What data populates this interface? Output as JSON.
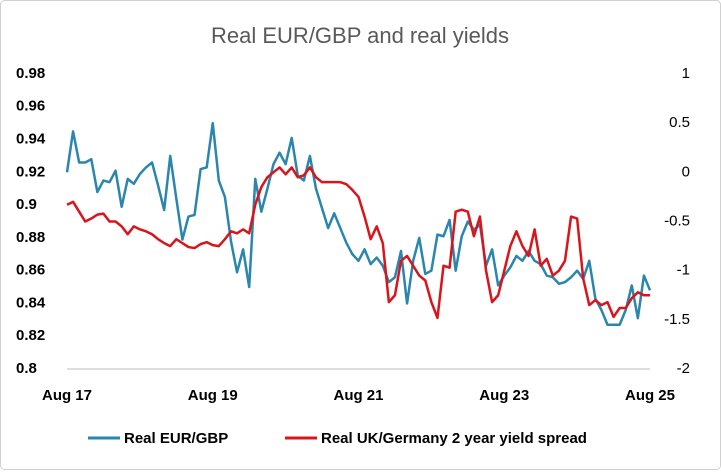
{
  "chart_data": {
    "type": "line",
    "title": "Real EUR/GBP and real yields",
    "categories": [
      "Aug 17",
      null,
      null,
      null,
      null,
      null,
      null,
      null,
      null,
      null,
      null,
      null,
      null,
      null,
      null,
      null,
      null,
      null,
      null,
      null,
      null,
      null,
      null,
      null,
      "Aug 19",
      null,
      null,
      null,
      null,
      null,
      null,
      null,
      null,
      null,
      null,
      null,
      null,
      null,
      null,
      null,
      null,
      null,
      null,
      null,
      null,
      null,
      null,
      null,
      "Aug 21",
      null,
      null,
      null,
      null,
      null,
      null,
      null,
      null,
      null,
      null,
      null,
      null,
      null,
      null,
      null,
      null,
      null,
      null,
      null,
      null,
      null,
      null,
      null,
      "Aug 23",
      null,
      null,
      null,
      null,
      null,
      null,
      null,
      null,
      null,
      null,
      null,
      null,
      null,
      null,
      null,
      null,
      null,
      null,
      null,
      null,
      null,
      null,
      null,
      "Aug 25"
    ],
    "series": [
      {
        "name": "Real EUR/GBP",
        "color": "#2b86ad",
        "axis": "y",
        "values": [
          0.92,
          0.945,
          0.926,
          0.926,
          0.928,
          0.908,
          0.915,
          0.914,
          0.921,
          0.899,
          0.916,
          0.913,
          0.919,
          0.923,
          0.926,
          0.912,
          0.897,
          0.93,
          0.904,
          0.879,
          0.893,
          0.894,
          0.922,
          0.923,
          0.95,
          0.915,
          0.905,
          0.878,
          0.859,
          0.873,
          0.85,
          0.916,
          0.896,
          0.91,
          0.925,
          0.932,
          0.925,
          0.941,
          0.918,
          0.915,
          0.93,
          0.91,
          0.898,
          0.886,
          0.895,
          0.886,
          0.877,
          0.87,
          0.866,
          0.873,
          0.864,
          0.868,
          0.863,
          0.853,
          0.856,
          0.872,
          0.84,
          0.866,
          0.88,
          0.858,
          0.86,
          0.882,
          0.881,
          0.891,
          0.86,
          0.881,
          0.89,
          0.885,
          0.888,
          0.863,
          0.873,
          0.851,
          0.857,
          0.862,
          0.869,
          0.866,
          0.872,
          0.866,
          0.864,
          0.857,
          0.856,
          0.852,
          0.853,
          0.856,
          0.86,
          0.855,
          0.866,
          0.843,
          0.836,
          0.827,
          0.827,
          0.827,
          0.836,
          0.851,
          0.831,
          0.857,
          0.848
        ]
      },
      {
        "name": "Real UK/Germany 2 year yield spread",
        "color": "#d9141b",
        "axis": "y2",
        "values": [
          -0.33,
          -0.3,
          -0.4,
          -0.5,
          -0.47,
          -0.43,
          -0.42,
          -0.5,
          -0.5,
          -0.55,
          -0.63,
          -0.55,
          -0.58,
          -0.6,
          -0.63,
          -0.68,
          -0.72,
          -0.75,
          -0.68,
          -0.72,
          -0.76,
          -0.77,
          -0.73,
          -0.71,
          -0.74,
          -0.75,
          -0.68,
          -0.6,
          -0.62,
          -0.58,
          -0.62,
          -0.33,
          -0.15,
          -0.05,
          0.0,
          0.05,
          -0.02,
          0.05,
          -0.05,
          -0.03,
          0.05,
          -0.05,
          -0.1,
          -0.1,
          -0.1,
          -0.1,
          -0.12,
          -0.18,
          -0.25,
          -0.45,
          -0.68,
          -0.55,
          -0.72,
          -1.32,
          -1.25,
          -0.9,
          -0.85,
          -0.95,
          -1.05,
          -1.1,
          -1.32,
          -1.48,
          -0.95,
          -0.97,
          -0.4,
          -0.38,
          -0.4,
          -0.65,
          -0.45,
          -1.0,
          -1.32,
          -1.25,
          -1.0,
          -0.75,
          -0.6,
          -0.75,
          -0.85,
          -0.58,
          -0.95,
          -0.88,
          -1.05,
          -1.0,
          -0.9,
          -0.45,
          -0.47,
          -1.08,
          -1.35,
          -1.3,
          -1.35,
          -1.32,
          -1.47,
          -1.38,
          -1.38,
          -1.28,
          -1.22,
          -1.25,
          -1.25
        ]
      }
    ],
    "ylim": [
      0.8,
      0.98
    ],
    "yticks": [
      0.8,
      0.82,
      0.84,
      0.86,
      0.88,
      0.9,
      0.92,
      0.94,
      0.96,
      0.98
    ],
    "y2lim": [
      -2,
      1
    ],
    "y2ticks": [
      -2,
      -1.5,
      -1,
      -0.5,
      0,
      0.5,
      1
    ],
    "grid": false,
    "legend": "bottom"
  }
}
